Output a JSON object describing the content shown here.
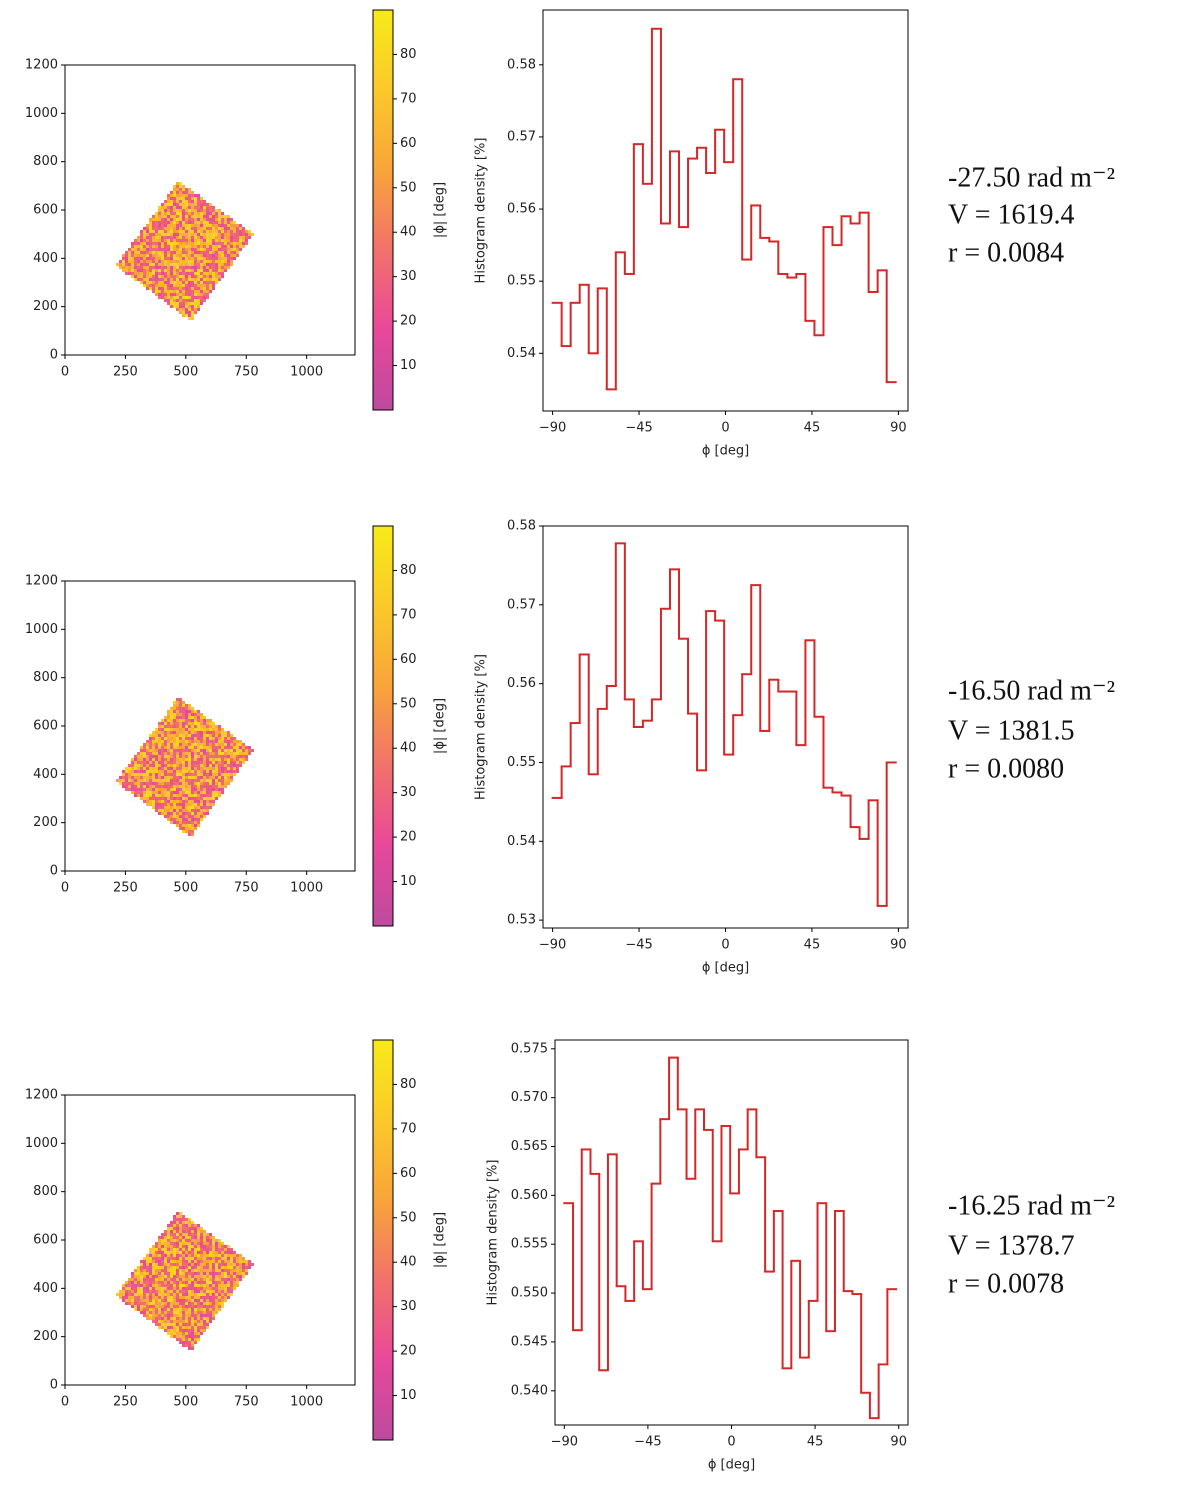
{
  "chart_data": [
    {
      "type": "image",
      "xlim": [
        0,
        1200
      ],
      "xticks": [
        0,
        250,
        500,
        750,
        1000
      ],
      "ylim": [
        0,
        1200
      ],
      "yticks": [
        0,
        200,
        400,
        600,
        800,
        1000,
        1200
      ],
      "colorbar": {
        "label": "|ϕ| [deg]",
        "lim": [
          0,
          90
        ],
        "ticks": [
          10,
          20,
          30,
          40,
          50,
          60,
          70,
          80
        ],
        "colormap": [
          "#bd4aa0",
          "#e8489a",
          "#f2716a",
          "#f8a43a",
          "#fbc92a",
          "#f6ea18"
        ]
      }
    },
    {
      "type": "histogram",
      "xlabel": "ϕ [deg]",
      "ylabel": "Histogram density [%]",
      "color": "#d62728",
      "xlim": [
        -95,
        95
      ],
      "xticks": [
        {
          "value": -90,
          "label": "−90"
        },
        {
          "value": -45,
          "label": "−45"
        },
        0,
        45,
        90
      ],
      "ylim": [
        0.532,
        0.5876
      ],
      "yticks": [
        0.54,
        0.55,
        0.56,
        0.57,
        0.58
      ],
      "bins": [
        -90,
        -85.3,
        -80.6,
        -75.9,
        -71.2,
        -66.5,
        -61.8,
        -57.1,
        -52.4,
        -47.7,
        -43,
        -38.3,
        -33.6,
        -28.9,
        -24.2,
        -19.5,
        -14.8,
        -10.1,
        -5.4,
        -0.7,
        4,
        8.7,
        13.4,
        18.1,
        22.8,
        27.5,
        32.2,
        36.9,
        41.6,
        46.3,
        51,
        55.7,
        60.4,
        65.1,
        69.8,
        74.5,
        79.2,
        83.9,
        88.6
      ],
      "values": [
        0.547,
        0.541,
        0.547,
        0.5495,
        0.54,
        0.549,
        0.535,
        0.554,
        0.551,
        0.569,
        0.5635,
        0.585,
        0.558,
        0.568,
        0.5575,
        0.567,
        0.5685,
        0.565,
        0.571,
        0.5665,
        0.578,
        0.553,
        0.5605,
        0.556,
        0.5555,
        0.551,
        0.5505,
        0.551,
        0.5445,
        0.5425,
        0.5575,
        0.555,
        0.559,
        0.558,
        0.5595,
        0.5485,
        0.5515,
        0.536
      ],
      "annotations": [
        "-27.50 rad m⁻²",
        "V = 1619.4",
        "r = 0.0084"
      ]
    },
    {
      "type": "image",
      "xlim": [
        0,
        1200
      ],
      "xticks": [
        0,
        250,
        500,
        750,
        1000
      ],
      "ylim": [
        0,
        1200
      ],
      "yticks": [
        0,
        200,
        400,
        600,
        800,
        1000,
        1200
      ],
      "colorbar": {
        "label": "|ϕ| [deg]",
        "lim": [
          0,
          90
        ],
        "ticks": [
          10,
          20,
          30,
          40,
          50,
          60,
          70,
          80
        ],
        "colormap": [
          "#bd4aa0",
          "#e8489a",
          "#f2716a",
          "#f8a43a",
          "#fbc92a",
          "#f6ea18"
        ]
      }
    },
    {
      "type": "histogram",
      "xlabel": "ϕ [deg]",
      "ylabel": "Histogram density [%]",
      "color": "#d62728",
      "xlim": [
        -95,
        95
      ],
      "xticks": [
        {
          "value": -90,
          "label": "−90"
        },
        {
          "value": -45,
          "label": "−45"
        },
        0,
        45,
        90
      ],
      "ylim": [
        0.529,
        0.58
      ],
      "yticks": [
        0.53,
        0.54,
        0.55,
        0.56,
        0.57,
        0.58
      ],
      "bins": [
        -90,
        -85.3,
        -80.6,
        -75.9,
        -71.2,
        -66.5,
        -61.8,
        -57.1,
        -52.4,
        -47.7,
        -43,
        -38.3,
        -33.6,
        -28.9,
        -24.2,
        -19.5,
        -14.8,
        -10.1,
        -5.4,
        -0.7,
        4,
        8.7,
        13.4,
        18.1,
        22.8,
        27.5,
        32.2,
        36.9,
        41.6,
        46.3,
        51,
        55.7,
        60.4,
        65.1,
        69.8,
        74.5,
        79.2,
        83.9,
        88.6
      ],
      "values": [
        0.5455,
        0.5495,
        0.555,
        0.5637,
        0.5485,
        0.5568,
        0.5597,
        0.5778,
        0.558,
        0.5545,
        0.5553,
        0.558,
        0.5695,
        0.5745,
        0.5657,
        0.5562,
        0.549,
        0.5692,
        0.568,
        0.551,
        0.556,
        0.5612,
        0.5725,
        0.554,
        0.5605,
        0.559,
        0.559,
        0.5522,
        0.5655,
        0.5558,
        0.5468,
        0.5462,
        0.5458,
        0.5418,
        0.5403,
        0.5452,
        0.5318,
        0.55
      ],
      "annotations": [
        "-16.50 rad m⁻²",
        "V = 1381.5",
        "r = 0.0080"
      ]
    },
    {
      "type": "image",
      "xlim": [
        0,
        1200
      ],
      "xticks": [
        0,
        250,
        500,
        750,
        1000
      ],
      "ylim": [
        0,
        1200
      ],
      "yticks": [
        0,
        200,
        400,
        600,
        800,
        1000,
        1200
      ],
      "colorbar": {
        "label": "|ϕ| [deg]",
        "lim": [
          0,
          90
        ],
        "ticks": [
          10,
          20,
          30,
          40,
          50,
          60,
          70,
          80
        ],
        "colormap": [
          "#bd4aa0",
          "#e8489a",
          "#f2716a",
          "#f8a43a",
          "#fbc92a",
          "#f6ea18"
        ]
      }
    },
    {
      "type": "histogram",
      "xlabel": "ϕ [deg]",
      "ylabel": "Histogram density [%]",
      "color": "#d62728",
      "xlim": [
        -95,
        95
      ],
      "xticks": [
        {
          "value": -90,
          "label": "−90"
        },
        {
          "value": -45,
          "label": "−45"
        },
        0,
        45,
        90
      ],
      "ylim": [
        0.5365,
        0.5759
      ],
      "yticks": [
        {
          "value": 0.54,
          "label": "0.540"
        },
        {
          "value": 0.545,
          "label": "0.545"
        },
        {
          "value": 0.55,
          "label": "0.550"
        },
        {
          "value": 0.555,
          "label": "0.555"
        },
        {
          "value": 0.56,
          "label": "0.560"
        },
        {
          "value": 0.565,
          "label": "0.565"
        },
        {
          "value": 0.57,
          "label": "0.570"
        },
        {
          "value": 0.575,
          "label": "0.575"
        }
      ],
      "bins": [
        -90,
        -85.3,
        -80.6,
        -75.9,
        -71.2,
        -66.5,
        -61.8,
        -57.1,
        -52.4,
        -47.7,
        -43,
        -38.3,
        -33.6,
        -28.9,
        -24.2,
        -19.5,
        -14.8,
        -10.1,
        -5.4,
        -0.7,
        4,
        8.7,
        13.4,
        18.1,
        22.8,
        27.5,
        32.2,
        36.9,
        41.6,
        46.3,
        51,
        55.7,
        60.4,
        65.1,
        69.8,
        74.5,
        79.2,
        83.9,
        88.6
      ],
      "values": [
        0.5592,
        0.5462,
        0.5647,
        0.5622,
        0.5421,
        0.5642,
        0.5507,
        0.5492,
        0.5553,
        0.5504,
        0.5612,
        0.5678,
        0.5741,
        0.5688,
        0.5617,
        0.5688,
        0.5667,
        0.5553,
        0.5671,
        0.5602,
        0.5647,
        0.5688,
        0.5639,
        0.5522,
        0.5584,
        0.5423,
        0.5533,
        0.5434,
        0.5492,
        0.5592,
        0.5461,
        0.5584,
        0.5502,
        0.5499,
        0.5398,
        0.5372,
        0.5427,
        0.5504
      ],
      "annotations": [
        "-16.25 rad m⁻²",
        "V = 1378.7",
        "r = 0.0078"
      ]
    }
  ]
}
